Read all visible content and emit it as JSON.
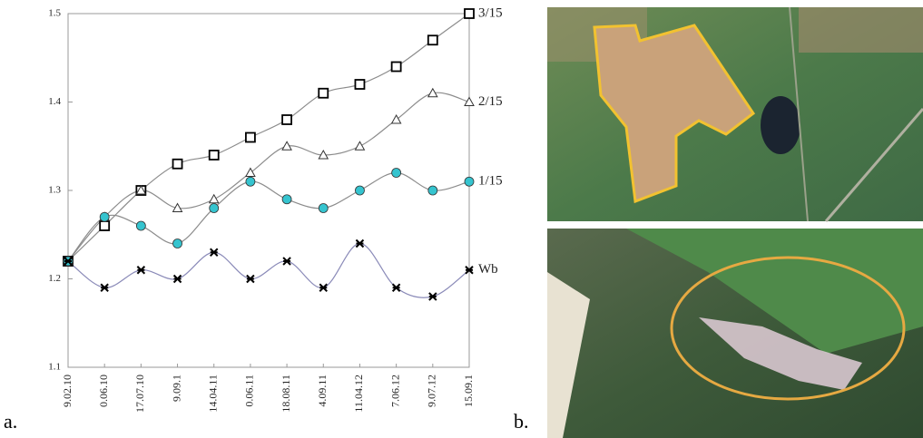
{
  "chart_data": {
    "type": "line",
    "categories": [
      "9.02.10",
      "0.06.10",
      "17.07.10",
      "9.09.1",
      "14.04.11",
      "0.06.11",
      "18.08.11",
      "4.09.11",
      "11.04.12",
      "7.06.12",
      "9.07.12",
      "15.09.1"
    ],
    "series": [
      {
        "name": "3/15",
        "color": "#8c8c8c",
        "marker": "square",
        "marker_color": "#ffffff",
        "values": [
          1.22,
          1.26,
          1.3,
          1.33,
          1.34,
          1.36,
          1.38,
          1.41,
          1.42,
          1.44,
          1.47,
          1.5
        ]
      },
      {
        "name": "2/15",
        "color": "#8c8c8c",
        "marker": "triangle",
        "marker_color": "#ffffff",
        "values": [
          1.22,
          1.27,
          1.3,
          1.28,
          1.29,
          1.32,
          1.35,
          1.34,
          1.35,
          1.38,
          1.41,
          1.4
        ]
      },
      {
        "name": "1/15",
        "color": "#8c8c8c",
        "marker": "circle",
        "marker_color": "#35c4cf",
        "values": [
          1.22,
          1.27,
          1.26,
          1.24,
          1.28,
          1.31,
          1.29,
          1.28,
          1.3,
          1.32,
          1.3,
          1.31
        ]
      },
      {
        "name": "Wb",
        "color": "#8a8ab8",
        "marker": "asterisk",
        "marker_color": "#000000",
        "values": [
          1.22,
          1.19,
          1.21,
          1.2,
          1.23,
          1.2,
          1.22,
          1.19,
          1.24,
          1.19,
          1.18,
          1.21
        ]
      }
    ],
    "ylim": [
      1.1,
      1.5
    ],
    "yticks": [
      1.1,
      1.2,
      1.3,
      1.4,
      1.5
    ],
    "grid": false
  },
  "panels": {
    "a": "a.",
    "b": "b."
  }
}
